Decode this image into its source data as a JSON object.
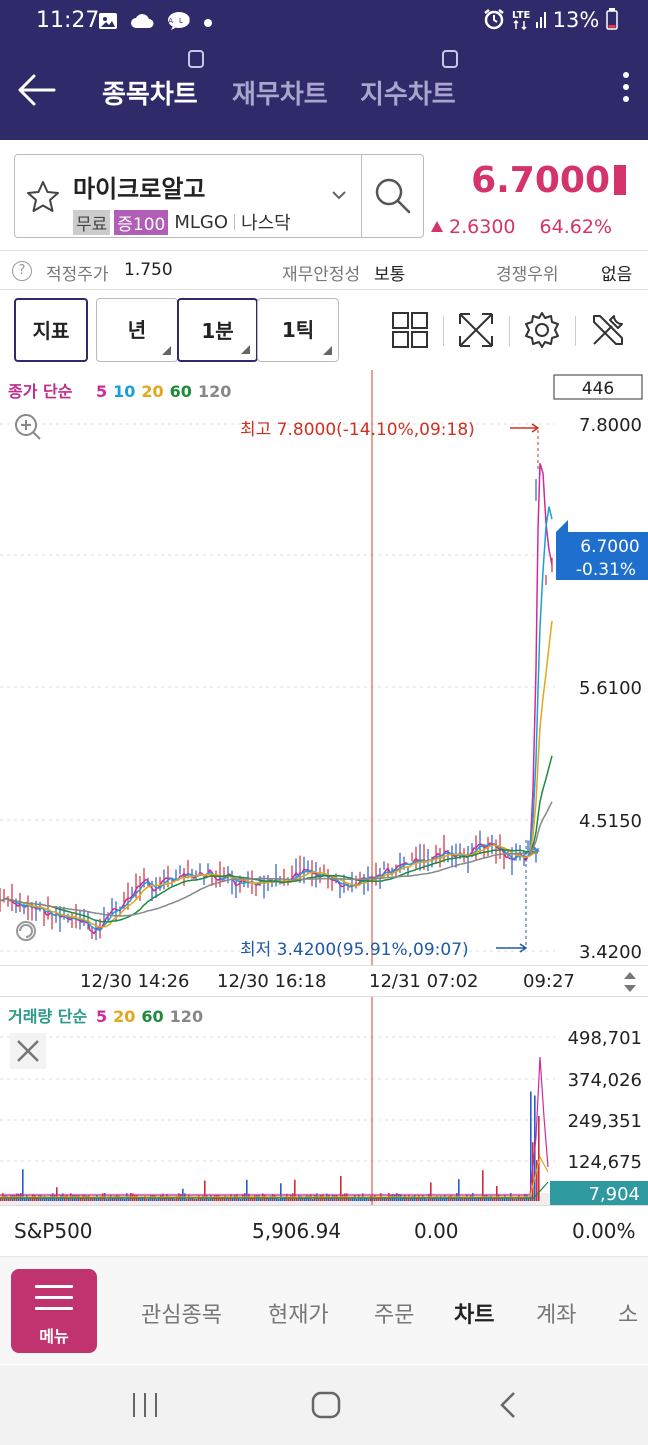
{
  "status_bar": {
    "time": "11:27",
    "icons": [
      "gallery-icon",
      "cloud-icon",
      "talk-icon",
      "dot-icon"
    ],
    "right_text": "⏰ LTE .▎ 13%",
    "battery": "13%"
  },
  "header": {
    "tabs": [
      {
        "label": "종목차트",
        "active": true
      },
      {
        "label": "재무차트",
        "active": false
      },
      {
        "label": "지수차트",
        "active": false
      }
    ]
  },
  "stock": {
    "name": "마이크로알고",
    "tag_free": "무료",
    "tag_margin": "증100",
    "ticker": "MLGO",
    "market": "나스닥",
    "price": "6.7000",
    "change": "2.6300",
    "change_pct": "64.62%"
  },
  "info": {
    "fair_price_label": "적정주가",
    "fair_price": "1.750",
    "stability_label": "재무안정성",
    "stability": "보통",
    "competitive_label": "경쟁우위",
    "competitive": "없음"
  },
  "toolbar": {
    "indicator": "지표",
    "year": "년",
    "minute": "1분",
    "tick": "1틱"
  },
  "chart": {
    "legend_title": "종가 단순",
    "ma_periods": [
      "5",
      "10",
      "20",
      "60",
      "120"
    ],
    "ma_colors": [
      "#d02b9a",
      "#1aa0d8",
      "#e0a81a",
      "#1d8a3c",
      "#888888"
    ],
    "count_box": "446",
    "y_ticks": [
      "7.8000",
      "5.6100",
      "4.5150",
      "3.4200"
    ],
    "current_price": "6.7000",
    "current_pct": "-0.31%",
    "high_label": "최고 7.8000(-14.10%,09:18)",
    "low_label": "최저 3.4200(95.91%,09:07)",
    "x_ticks": [
      "12/30 14:26",
      "12/30 16:18",
      "12/31 07:02",
      "09:27"
    ]
  },
  "volume": {
    "legend_title": "거래량 단순",
    "ma_periods": [
      "5",
      "20",
      "60",
      "120"
    ],
    "ma_colors": [
      "#d02b9a",
      "#e0a81a",
      "#1d8a3c",
      "#888888"
    ],
    "y_ticks": [
      "498,701",
      "374,026",
      "249,351",
      "124,675"
    ],
    "current": "7,904"
  },
  "index_row": {
    "name": "S&P500",
    "value": "5,906.94",
    "change": "0.00",
    "pct": "0.00%"
  },
  "bottom_nav": {
    "menu_label": "메뉴",
    "items": [
      {
        "label": "관심종목",
        "active": false
      },
      {
        "label": "현재가",
        "active": false
      },
      {
        "label": "주문",
        "active": false
      },
      {
        "label": "차트",
        "active": true
      },
      {
        "label": "계좌",
        "active": false
      },
      {
        "label": "소",
        "active": false
      }
    ]
  }
}
